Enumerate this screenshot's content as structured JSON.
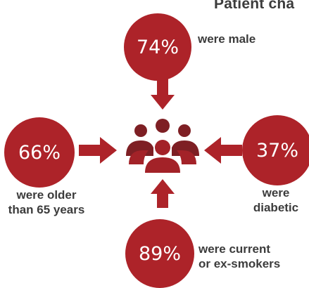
{
  "title": "Patient cha",
  "accent_color": "#ad2329",
  "center_icon": "people-group-icon",
  "arrow_icon": "arrow-icon",
  "items": [
    {
      "value": "74%",
      "label_lines": [
        "were male"
      ]
    },
    {
      "value": "66%",
      "label_lines": [
        "were older",
        "than 65 years"
      ]
    },
    {
      "value": "37%",
      "label_lines": [
        "were",
        "diabetic"
      ]
    },
    {
      "value": "89%",
      "label_lines": [
        "were current",
        "or ex-smokers"
      ]
    }
  ]
}
